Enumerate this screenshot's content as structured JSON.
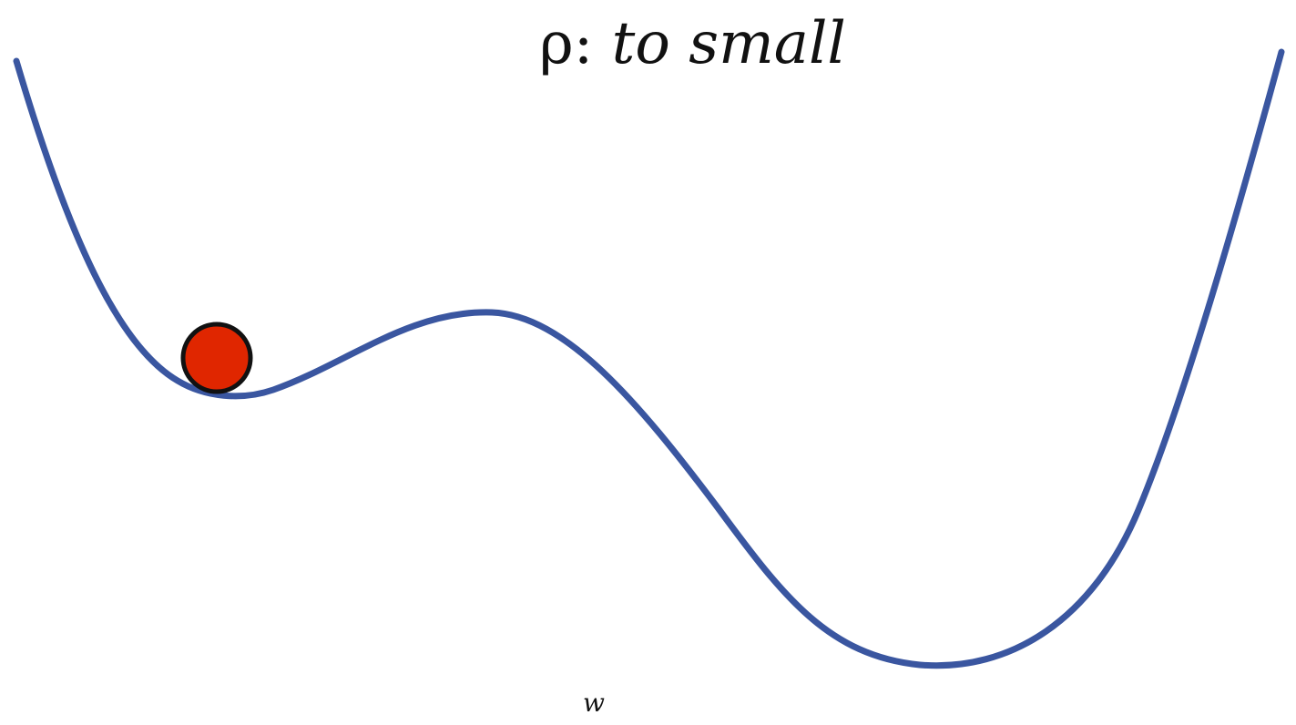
{
  "title": {
    "symbol": "ρ:",
    "text": "to small"
  },
  "axis": {
    "xlabel": "w"
  },
  "colors": {
    "curve": "#3a56a0",
    "ball_fill": "#e02600",
    "ball_stroke": "#111111",
    "background": "#ffffff"
  }
}
